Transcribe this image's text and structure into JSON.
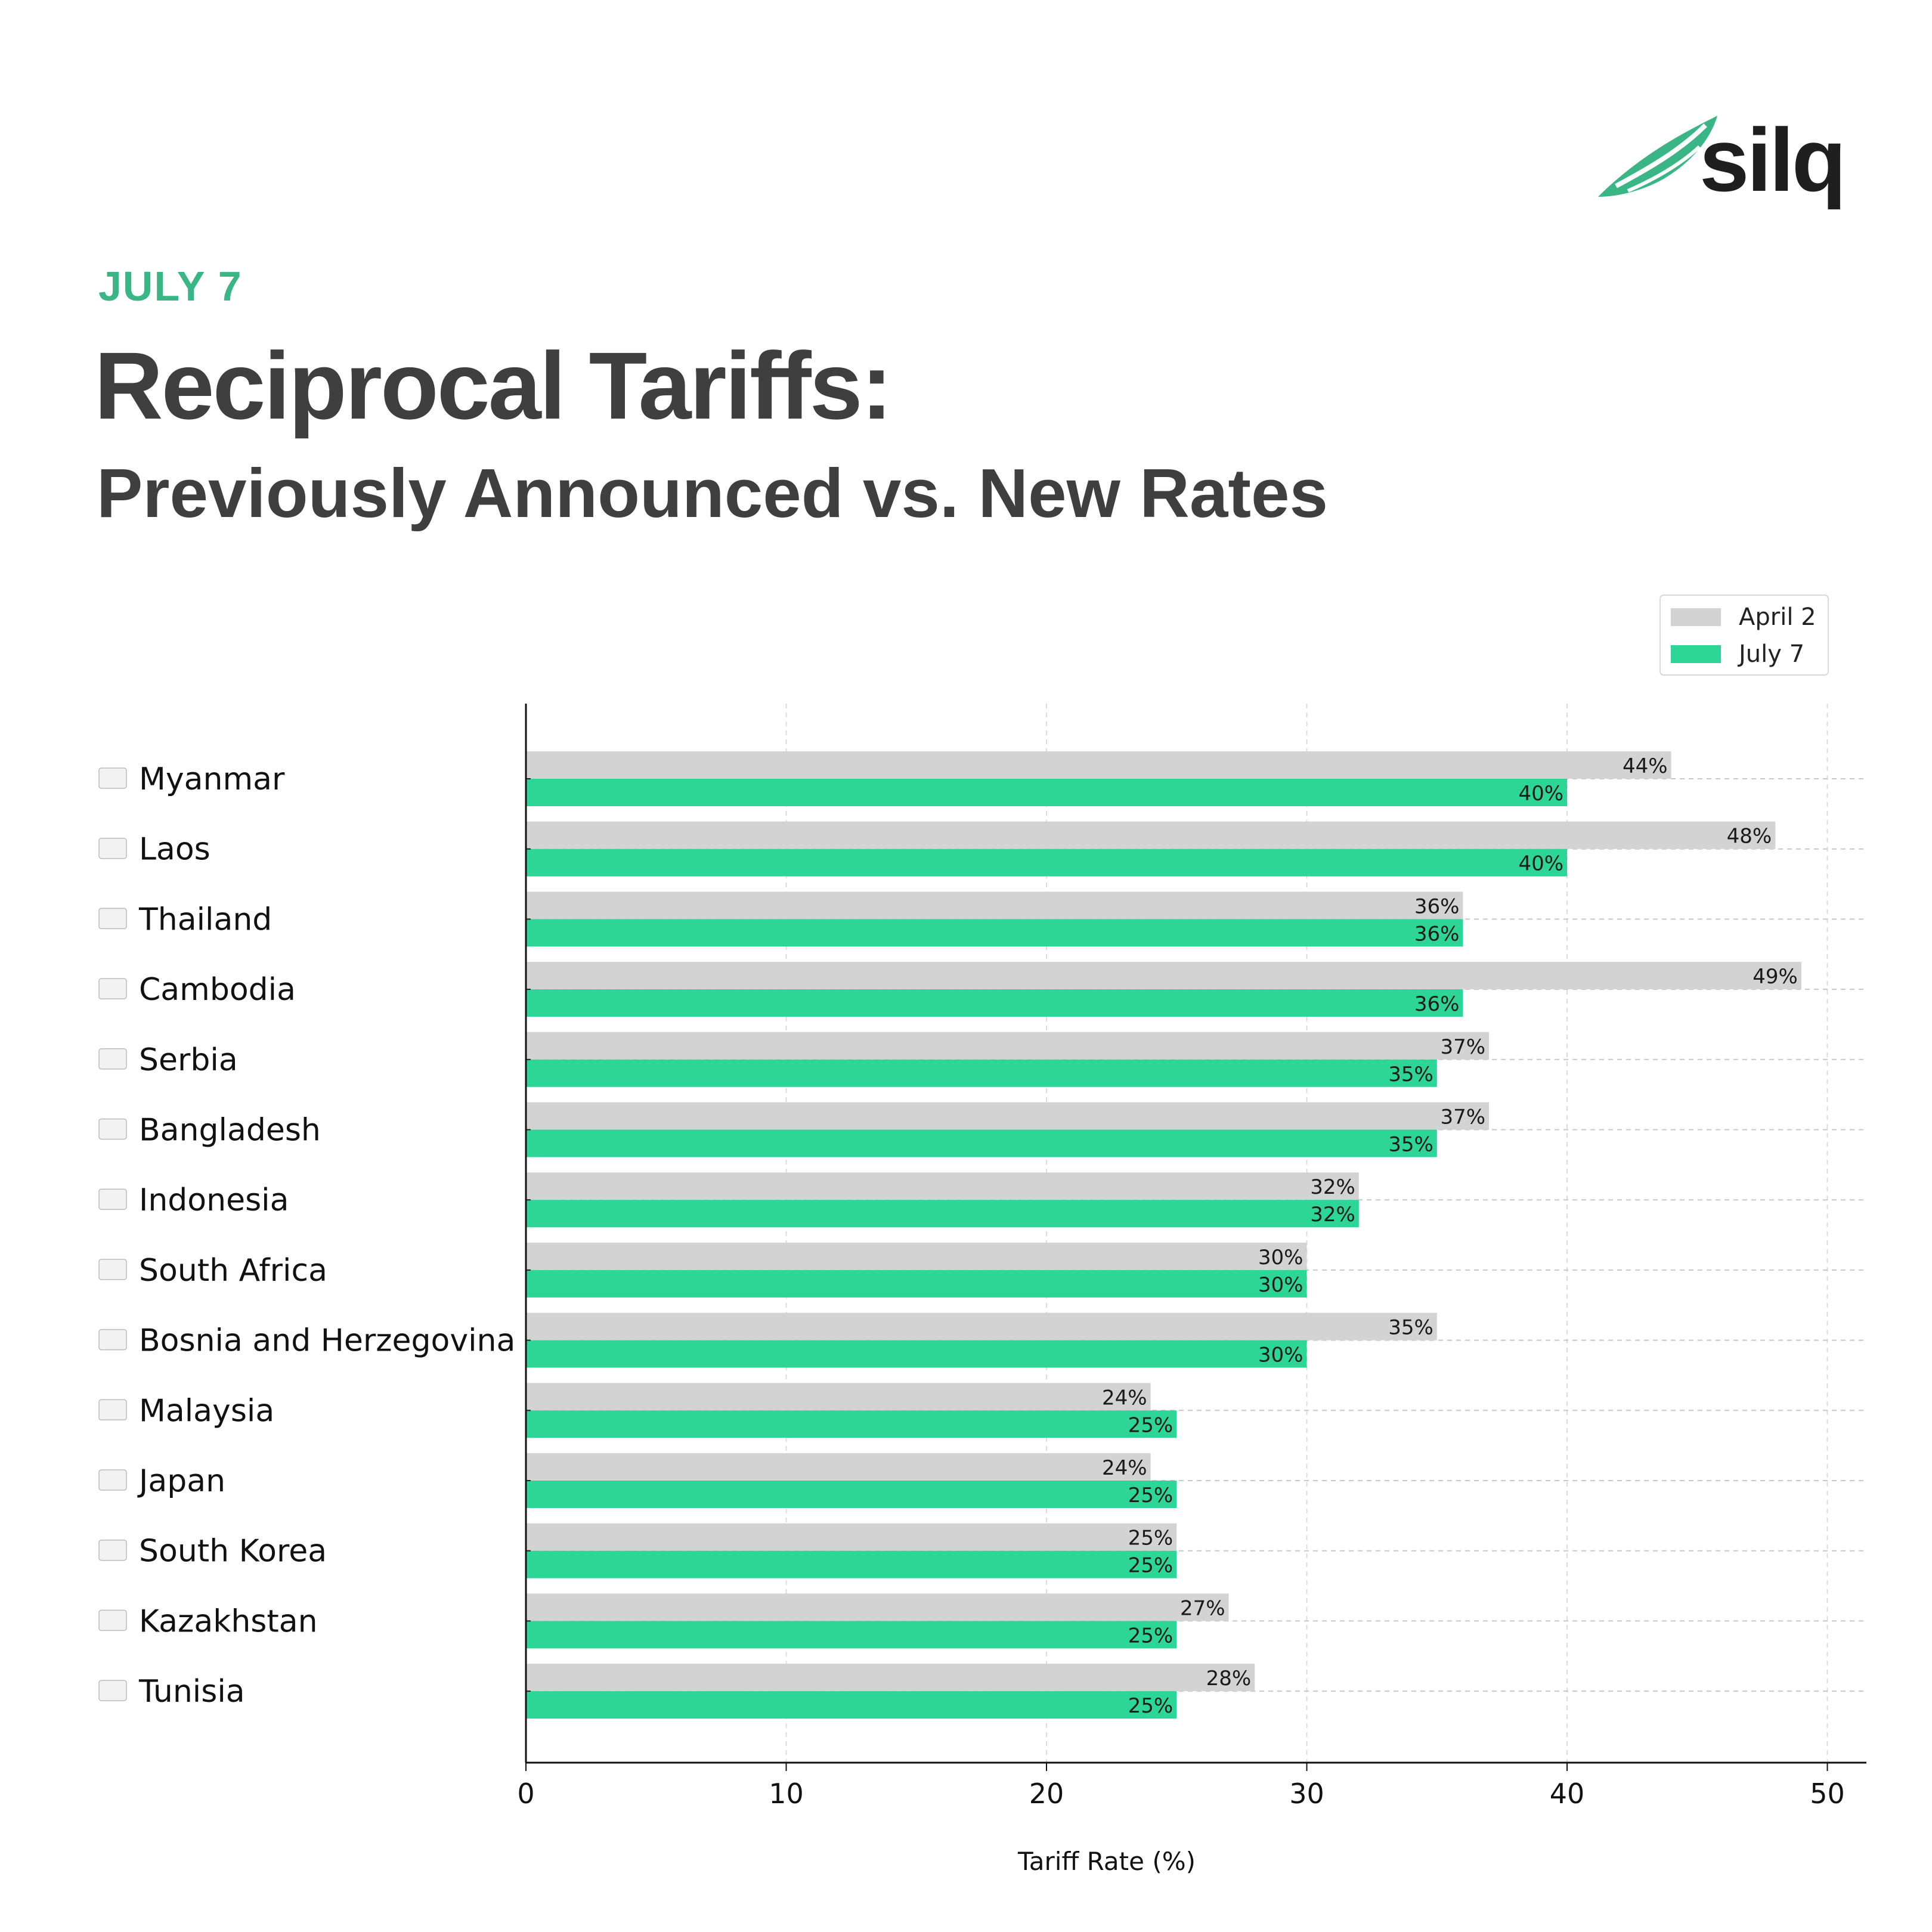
{
  "brand": {
    "name": "silq",
    "accent": "#3ab585"
  },
  "header": {
    "kicker": "JULY 7",
    "title": "Reciprocal Tariffs:",
    "subtitle": "Previously Announced vs. New Rates"
  },
  "chart_data": {
    "type": "bar",
    "orientation": "horizontal",
    "categories": [
      "Myanmar",
      "Laos",
      "Thailand",
      "Cambodia",
      "Serbia",
      "Bangladesh",
      "Indonesia",
      "South Africa",
      "Bosnia and Herzegovina",
      "Malaysia",
      "Japan",
      "South Korea",
      "Kazakhstan",
      "Tunisia"
    ],
    "series": [
      {
        "name": "April 2",
        "color": "#d3d3d3",
        "values": [
          44,
          48,
          36,
          49,
          37,
          37,
          32,
          30,
          35,
          24,
          24,
          25,
          27,
          28
        ],
        "labels": [
          "44%",
          "48%",
          "36%",
          "49%",
          "37%",
          "37%",
          "32%",
          "30%",
          "35%",
          "24%",
          "24%",
          "25%",
          "27%",
          "28%"
        ]
      },
      {
        "name": "July 7",
        "color": "#2dd596",
        "values": [
          40,
          40,
          36,
          36,
          35,
          35,
          32,
          30,
          30,
          25,
          25,
          25,
          25,
          25
        ],
        "labels": [
          "40%",
          "40%",
          "36%",
          "36%",
          "35%",
          "35%",
          "32%",
          "30%",
          "30%",
          "25%",
          "25%",
          "25%",
          "25%",
          "25%"
        ]
      }
    ],
    "xlabel": "Tariff Rate (%)",
    "ylabel": "",
    "xlim": [
      0,
      51.5
    ],
    "xticks": [
      0,
      10,
      20,
      30,
      40,
      50
    ],
    "xtick_labels": [
      "0",
      "10",
      "20",
      "30",
      "40",
      "50"
    ],
    "grid": true,
    "legend": "top-right"
  }
}
